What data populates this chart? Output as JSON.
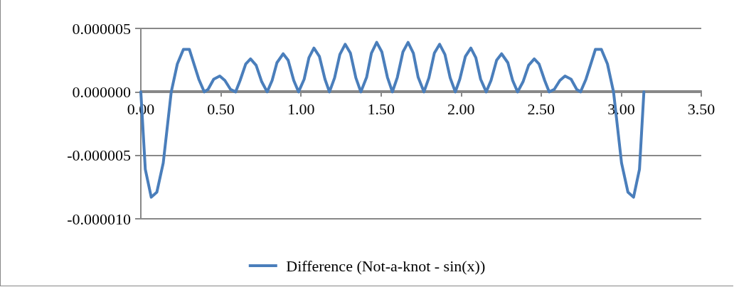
{
  "chart_data": {
    "type": "line",
    "legend": "bottom",
    "grid": "y",
    "marker": "none",
    "line_style": "solid",
    "xlim": [
      0,
      3.5
    ],
    "xticks": [
      {
        "value": 0,
        "label": "0.00"
      },
      {
        "value": 0.5,
        "label": "0.50"
      },
      {
        "value": 1,
        "label": "1.00"
      },
      {
        "value": 1.5,
        "label": "1.50"
      },
      {
        "value": 2,
        "label": "2.00"
      },
      {
        "value": 2.5,
        "label": "2.50"
      },
      {
        "value": 3,
        "label": "3.00"
      },
      {
        "value": 3.5,
        "label": "3.50"
      }
    ],
    "ylim": [
      -1e-05,
      5e-06
    ],
    "yticks": [
      {
        "value": -1e-05,
        "label": "-0.000010"
      },
      {
        "value": -5e-06,
        "label": "-0.000005"
      },
      {
        "value": 0,
        "label": "0.000000"
      },
      {
        "value": 5e-06,
        "label": "0.000005"
      }
    ],
    "series": [
      {
        "name": "Difference (Not-a-knot - sin(x))",
        "color": "#4a7ebb",
        "x": [
          0,
          0.028,
          0.065,
          0.1,
          0.14,
          0.19,
          0.228,
          0.266,
          0.303,
          0.332,
          0.362,
          0.396,
          0.42,
          0.455,
          0.493,
          0.525,
          0.56,
          0.592,
          0.62,
          0.655,
          0.685,
          0.72,
          0.755,
          0.789,
          0.82,
          0.85,
          0.889,
          0.92,
          0.955,
          0.985,
          1.02,
          1.05,
          1.081,
          1.115,
          1.15,
          1.178,
          1.21,
          1.243,
          1.276,
          1.309,
          1.343,
          1.374,
          1.41,
          1.44,
          1.473,
          1.505,
          1.54,
          1.571,
          1.602,
          1.637,
          1.669,
          1.702,
          1.732,
          1.768,
          1.799,
          1.833,
          1.866,
          1.899,
          1.932,
          1.964,
          1.992,
          2.027,
          2.061,
          2.092,
          2.122,
          2.157,
          2.187,
          2.222,
          2.253,
          2.292,
          2.322,
          2.353,
          2.387,
          2.422,
          2.457,
          2.487,
          2.522,
          2.55,
          2.582,
          2.617,
          2.649,
          2.687,
          2.722,
          2.746,
          2.78,
          2.81,
          2.839,
          2.876,
          2.914,
          2.952,
          3.002,
          3.042,
          3.077,
          3.114,
          3.1416
        ],
        "values": [
          0,
          -6.1e-06,
          -8.3e-06,
          -7.9e-06,
          -5.6e-06,
          0,
          2.2e-06,
          3.35e-06,
          3.35e-06,
          2.2e-06,
          1e-06,
          0,
          2e-07,
          1e-06,
          1.25e-06,
          9e-07,
          2e-07,
          0,
          9e-07,
          2.2e-06,
          2.6e-06,
          2.1e-06,
          8e-07,
          0,
          9e-07,
          2.3e-06,
          3e-06,
          2.5e-06,
          9e-07,
          0,
          1e-06,
          2.7e-06,
          3.45e-06,
          2.8e-06,
          1e-06,
          0,
          1.1e-06,
          2.95e-06,
          3.75e-06,
          3.05e-06,
          1.1e-06,
          0,
          1.15e-06,
          3.05e-06,
          3.9e-06,
          3.15e-06,
          1.15e-06,
          0,
          1.15e-06,
          3.15e-06,
          3.9e-06,
          3.05e-06,
          1.15e-06,
          0,
          1.1e-06,
          3.05e-06,
          3.75e-06,
          2.95e-06,
          1.1e-06,
          0,
          1e-06,
          2.8e-06,
          3.45e-06,
          2.7e-06,
          1e-06,
          0,
          9e-07,
          2.5e-06,
          3e-06,
          2.3e-06,
          9e-07,
          0,
          8e-07,
          2.1e-06,
          2.6e-06,
          2.2e-06,
          9e-07,
          0,
          2e-07,
          9e-07,
          1.25e-06,
          1e-06,
          2e-07,
          0,
          1e-06,
          2.2e-06,
          3.35e-06,
          3.35e-06,
          2.2e-06,
          0,
          -5.6e-06,
          -7.9e-06,
          -8.3e-06,
          -6.1e-06,
          0
        ]
      }
    ]
  }
}
